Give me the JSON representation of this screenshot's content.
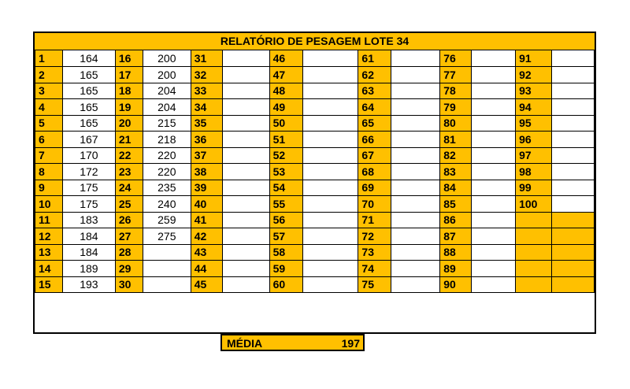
{
  "report": {
    "title": "RELATÓRIO DE PESAGEM LOTE 34",
    "colors": {
      "header_fill": "#FFC000",
      "grid_line": "#000000"
    },
    "rows": [
      [
        {
          "n": "1",
          "v": "164"
        },
        {
          "n": "16",
          "v": "200"
        },
        {
          "n": "31",
          "v": ""
        },
        {
          "n": "46",
          "v": ""
        },
        {
          "n": "61",
          "v": ""
        },
        {
          "n": "76",
          "v": ""
        },
        {
          "n": "91",
          "v": ""
        }
      ],
      [
        {
          "n": "2",
          "v": "165"
        },
        {
          "n": "17",
          "v": "200"
        },
        {
          "n": "32",
          "v": ""
        },
        {
          "n": "47",
          "v": ""
        },
        {
          "n": "62",
          "v": ""
        },
        {
          "n": "77",
          "v": ""
        },
        {
          "n": "92",
          "v": ""
        }
      ],
      [
        {
          "n": "3",
          "v": "165"
        },
        {
          "n": "18",
          "v": "204"
        },
        {
          "n": "33",
          "v": ""
        },
        {
          "n": "48",
          "v": ""
        },
        {
          "n": "63",
          "v": ""
        },
        {
          "n": "78",
          "v": ""
        },
        {
          "n": "93",
          "v": ""
        }
      ],
      [
        {
          "n": "4",
          "v": "165"
        },
        {
          "n": "19",
          "v": "204"
        },
        {
          "n": "34",
          "v": ""
        },
        {
          "n": "49",
          "v": ""
        },
        {
          "n": "64",
          "v": ""
        },
        {
          "n": "79",
          "v": ""
        },
        {
          "n": "94",
          "v": ""
        }
      ],
      [
        {
          "n": "5",
          "v": "165"
        },
        {
          "n": "20",
          "v": "215"
        },
        {
          "n": "35",
          "v": ""
        },
        {
          "n": "50",
          "v": ""
        },
        {
          "n": "65",
          "v": ""
        },
        {
          "n": "80",
          "v": ""
        },
        {
          "n": "95",
          "v": ""
        }
      ],
      [
        {
          "n": "6",
          "v": "167"
        },
        {
          "n": "21",
          "v": "218"
        },
        {
          "n": "36",
          "v": ""
        },
        {
          "n": "51",
          "v": ""
        },
        {
          "n": "66",
          "v": ""
        },
        {
          "n": "81",
          "v": ""
        },
        {
          "n": "96",
          "v": ""
        }
      ],
      [
        {
          "n": "7",
          "v": "170"
        },
        {
          "n": "22",
          "v": "220"
        },
        {
          "n": "37",
          "v": ""
        },
        {
          "n": "52",
          "v": ""
        },
        {
          "n": "67",
          "v": ""
        },
        {
          "n": "82",
          "v": ""
        },
        {
          "n": "97",
          "v": ""
        }
      ],
      [
        {
          "n": "8",
          "v": "172"
        },
        {
          "n": "23",
          "v": "220"
        },
        {
          "n": "38",
          "v": ""
        },
        {
          "n": "53",
          "v": ""
        },
        {
          "n": "68",
          "v": ""
        },
        {
          "n": "83",
          "v": ""
        },
        {
          "n": "98",
          "v": ""
        }
      ],
      [
        {
          "n": "9",
          "v": "175"
        },
        {
          "n": "24",
          "v": "235"
        },
        {
          "n": "39",
          "v": ""
        },
        {
          "n": "54",
          "v": ""
        },
        {
          "n": "69",
          "v": ""
        },
        {
          "n": "84",
          "v": ""
        },
        {
          "n": "99",
          "v": ""
        }
      ],
      [
        {
          "n": "10",
          "v": "175"
        },
        {
          "n": "25",
          "v": "240"
        },
        {
          "n": "40",
          "v": ""
        },
        {
          "n": "55",
          "v": ""
        },
        {
          "n": "70",
          "v": ""
        },
        {
          "n": "85",
          "v": ""
        },
        {
          "n": "100",
          "v": ""
        }
      ],
      [
        {
          "n": "11",
          "v": "183"
        },
        {
          "n": "26",
          "v": "259"
        },
        {
          "n": "41",
          "v": ""
        },
        {
          "n": "56",
          "v": ""
        },
        {
          "n": "71",
          "v": ""
        },
        {
          "n": "86",
          "v": ""
        },
        {
          "n": "",
          "v": ""
        }
      ],
      [
        {
          "n": "12",
          "v": "184"
        },
        {
          "n": "27",
          "v": "275"
        },
        {
          "n": "42",
          "v": ""
        },
        {
          "n": "57",
          "v": ""
        },
        {
          "n": "72",
          "v": ""
        },
        {
          "n": "87",
          "v": ""
        },
        {
          "n": "",
          "v": ""
        }
      ],
      [
        {
          "n": "13",
          "v": "184"
        },
        {
          "n": "28",
          "v": ""
        },
        {
          "n": "43",
          "v": ""
        },
        {
          "n": "58",
          "v": ""
        },
        {
          "n": "73",
          "v": ""
        },
        {
          "n": "88",
          "v": ""
        },
        {
          "n": "",
          "v": ""
        }
      ],
      [
        {
          "n": "14",
          "v": "189"
        },
        {
          "n": "29",
          "v": ""
        },
        {
          "n": "44",
          "v": ""
        },
        {
          "n": "59",
          "v": ""
        },
        {
          "n": "74",
          "v": ""
        },
        {
          "n": "89",
          "v": ""
        },
        {
          "n": "",
          "v": ""
        }
      ],
      [
        {
          "n": "15",
          "v": "193"
        },
        {
          "n": "30",
          "v": ""
        },
        {
          "n": "45",
          "v": ""
        },
        {
          "n": "60",
          "v": ""
        },
        {
          "n": "75",
          "v": ""
        },
        {
          "n": "90",
          "v": ""
        },
        {
          "n": "",
          "v": ""
        }
      ]
    ],
    "summary": {
      "label": "MÉDIA",
      "value": "197"
    }
  }
}
